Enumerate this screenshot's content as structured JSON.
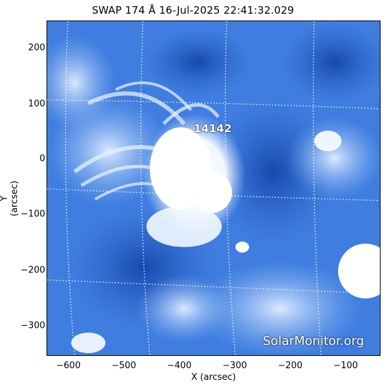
{
  "title": "SWAP 174 Å 16-Jul-2025 22:41:32.029",
  "xlabel": "X (arcsec)",
  "ylabel": "Y (arcsec)",
  "x_ticks": [
    "−600",
    "−500",
    "−400",
    "−300",
    "−200",
    "−100"
  ],
  "y_ticks": [
    "200",
    "100",
    "0",
    "−100",
    "−200",
    "−300"
  ],
  "region_label": "14142",
  "watermark": "SolarMonitor.org",
  "colors": {
    "background": "#3a78dc",
    "bright": "#f4f8ff",
    "dark": "#1c4fb8",
    "grid": "#ffffff"
  }
}
